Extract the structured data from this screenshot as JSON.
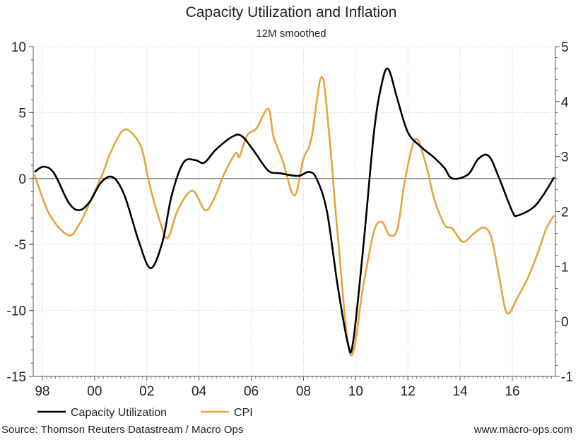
{
  "chart_data": {
    "type": "line",
    "title": "Capacity Utilization and Inflation",
    "subtitle": "12M smoothed",
    "x_ticks": [
      "98",
      "00",
      "02",
      "04",
      "06",
      "08",
      "10",
      "12",
      "14",
      "16"
    ],
    "x_tick_years": [
      1998,
      2000,
      2002,
      2004,
      2006,
      2008,
      2010,
      2012,
      2014,
      2016
    ],
    "xlim": [
      1997.65,
      2017.65
    ],
    "y_left": {
      "ylim": [
        -15,
        10
      ],
      "ticks": [
        10,
        5,
        0,
        -5,
        -10,
        -15
      ]
    },
    "y_right": {
      "ylim": [
        -1,
        5
      ],
      "ticks": [
        5,
        4,
        3,
        2,
        1,
        0,
        -1
      ]
    },
    "grid": true,
    "zero_line": true,
    "legend_position": "bottom-left",
    "series": [
      {
        "name": "Capacity Utilization",
        "axis": "left",
        "color": "#000000",
        "x": [
          1997.7,
          1998.05,
          1998.45,
          1999.0,
          1999.4,
          1999.8,
          2000.25,
          2000.7,
          2001.15,
          2001.7,
          2002.15,
          2002.6,
          2002.95,
          2003.4,
          2003.85,
          2004.2,
          2004.65,
          2005.3,
          2005.65,
          2006.1,
          2006.65,
          2007.1,
          2007.8,
          2008.2,
          2008.5,
          2008.9,
          2009.3,
          2009.7,
          2009.9,
          2010.3,
          2010.7,
          2011.0,
          2011.25,
          2011.6,
          2012.0,
          2012.5,
          2013.0,
          2013.4,
          2013.7,
          2014.3,
          2014.7,
          2015.1,
          2015.5,
          2016.0,
          2016.2,
          2016.8,
          2017.2,
          2017.6
        ],
        "y": [
          0.5,
          0.9,
          0.4,
          -1.8,
          -2.4,
          -1.8,
          -0.3,
          0.1,
          -1.3,
          -4.8,
          -6.8,
          -4.8,
          -1.3,
          1.2,
          1.4,
          1.2,
          2.2,
          3.2,
          3.2,
          2.1,
          0.6,
          0.4,
          0.2,
          0.5,
          0.0,
          -2.5,
          -8.0,
          -12.5,
          -12.4,
          -5.0,
          3.5,
          7.2,
          8.3,
          6.0,
          3.5,
          2.4,
          1.6,
          0.8,
          0.0,
          0.3,
          1.5,
          1.7,
          0.0,
          -2.5,
          -2.8,
          -2.2,
          -1.2,
          0.1
        ]
      },
      {
        "name": "CPI",
        "axis": "right",
        "color": "#E8A33C",
        "x": [
          1997.7,
          1998.27,
          1999.0,
          1999.43,
          1999.9,
          2000.35,
          2000.6,
          2001.05,
          2001.4,
          2001.8,
          2002.1,
          2002.5,
          2002.8,
          2003.2,
          2003.75,
          2004.25,
          2004.65,
          2004.95,
          2005.4,
          2005.55,
          2005.85,
          2006.2,
          2006.65,
          2006.85,
          2007.2,
          2007.65,
          2008.0,
          2008.3,
          2008.7,
          2009.0,
          2009.3,
          2009.8,
          2010.3,
          2010.7,
          2011.0,
          2011.3,
          2011.6,
          2011.9,
          2012.3,
          2012.7,
          2013.0,
          2013.4,
          2013.7,
          2014.1,
          2014.5,
          2014.9,
          2015.2,
          2015.5,
          2015.8,
          2016.2,
          2016.6,
          2017.0,
          2017.3,
          2017.6
        ],
        "y": [
          2.67,
          1.95,
          1.57,
          1.78,
          2.25,
          2.74,
          3.06,
          3.46,
          3.44,
          3.15,
          2.5,
          1.83,
          1.52,
          2.04,
          2.38,
          2.02,
          2.31,
          2.67,
          3.06,
          3.0,
          3.39,
          3.51,
          3.87,
          3.37,
          2.93,
          2.29,
          2.96,
          3.32,
          4.45,
          3.32,
          1.64,
          -0.6,
          0.68,
          1.64,
          1.81,
          1.57,
          1.69,
          2.6,
          3.32,
          2.84,
          2.24,
          1.76,
          1.69,
          1.45,
          1.59,
          1.71,
          1.52,
          0.8,
          0.15,
          0.44,
          0.8,
          1.28,
          1.69,
          1.93
        ]
      }
    ]
  },
  "footer": {
    "source": "Source: Thomson Reuters Datastream / Macro Ops",
    "website": "www.macro-ops.com"
  }
}
